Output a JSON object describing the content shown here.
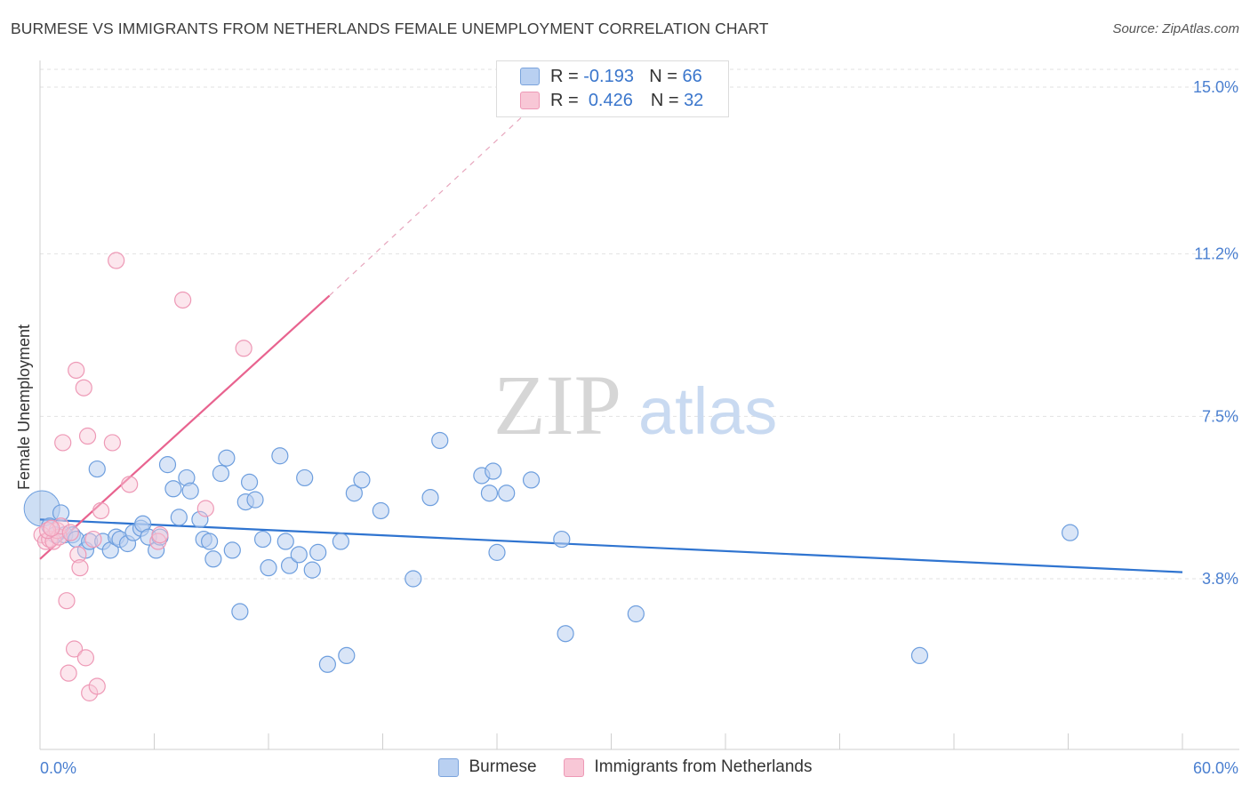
{
  "header": {
    "title": "BURMESE VS IMMIGRANTS FROM NETHERLANDS FEMALE UNEMPLOYMENT CORRELATION CHART",
    "source": "Source: ZipAtlas.com"
  },
  "watermark": {
    "zip": "ZIP",
    "atlas": "atlas"
  },
  "legend": {
    "r_label": "R =",
    "n_label": "N =",
    "burmese": {
      "r": "-0.193",
      "n": "66",
      "color": "#6fa0e0"
    },
    "netherlands": {
      "r": "0.426",
      "n": "32",
      "color": "#ef93b2"
    }
  },
  "bottom_legend": {
    "burmese": "Burmese",
    "netherlands": "Immigrants from Netherlands"
  },
  "chart_data": {
    "type": "scatter",
    "xlabel": "",
    "ylabel": "Female Unemployment",
    "x_tick_labels": [
      "0.0%",
      "60.0%"
    ],
    "y_tick_labels": [
      "3.8%",
      "7.5%",
      "11.2%",
      "15.0%"
    ],
    "y_ticks": [
      3.8,
      7.5,
      11.2,
      15.0
    ],
    "xlim": [
      0,
      60
    ],
    "ylim": [
      0,
      15.5
    ],
    "grid": true,
    "series": [
      {
        "name": "Burmese",
        "color": "#6fa0e0",
        "trend": {
          "x": [
            0,
            60
          ],
          "y": [
            5.15,
            3.95
          ]
        },
        "points": [
          [
            0.1,
            5.4
          ],
          [
            0.5,
            5.0
          ],
          [
            0.8,
            4.8
          ],
          [
            1.1,
            5.3
          ],
          [
            1.3,
            4.8
          ],
          [
            1.7,
            4.8
          ],
          [
            1.9,
            4.7
          ],
          [
            2.4,
            4.45
          ],
          [
            2.6,
            4.65
          ],
          [
            3.0,
            6.3
          ],
          [
            3.3,
            4.65
          ],
          [
            3.7,
            4.45
          ],
          [
            4.0,
            4.75
          ],
          [
            4.2,
            4.7
          ],
          [
            4.6,
            4.6
          ],
          [
            4.9,
            4.85
          ],
          [
            5.3,
            4.95
          ],
          [
            5.4,
            5.05
          ],
          [
            5.7,
            4.75
          ],
          [
            6.1,
            4.45
          ],
          [
            6.3,
            4.75
          ],
          [
            6.7,
            6.4
          ],
          [
            7.0,
            5.85
          ],
          [
            7.3,
            5.2
          ],
          [
            7.7,
            6.1
          ],
          [
            7.9,
            5.8
          ],
          [
            8.4,
            5.15
          ],
          [
            8.6,
            4.7
          ],
          [
            8.9,
            4.65
          ],
          [
            9.1,
            4.25
          ],
          [
            9.5,
            6.2
          ],
          [
            9.8,
            6.55
          ],
          [
            10.1,
            4.45
          ],
          [
            10.5,
            3.05
          ],
          [
            10.8,
            5.55
          ],
          [
            11.0,
            6.0
          ],
          [
            11.3,
            5.6
          ],
          [
            11.7,
            4.7
          ],
          [
            12.0,
            4.05
          ],
          [
            12.6,
            6.6
          ],
          [
            12.9,
            4.65
          ],
          [
            13.1,
            4.1
          ],
          [
            13.6,
            4.35
          ],
          [
            13.9,
            6.1
          ],
          [
            14.3,
            4.0
          ],
          [
            14.6,
            4.4
          ],
          [
            15.1,
            1.85
          ],
          [
            15.8,
            4.65
          ],
          [
            16.1,
            2.05
          ],
          [
            16.5,
            5.75
          ],
          [
            16.9,
            6.05
          ],
          [
            17.9,
            5.35
          ],
          [
            19.6,
            3.8
          ],
          [
            20.5,
            5.65
          ],
          [
            21.0,
            6.95
          ],
          [
            23.2,
            6.15
          ],
          [
            23.6,
            5.75
          ],
          [
            23.8,
            6.25
          ],
          [
            24.0,
            4.4
          ],
          [
            24.5,
            5.75
          ],
          [
            25.8,
            6.05
          ],
          [
            27.4,
            4.7
          ],
          [
            27.6,
            2.55
          ],
          [
            31.3,
            3.0
          ],
          [
            46.2,
            2.05
          ],
          [
            54.1,
            4.85
          ]
        ],
        "sizes": [
          28
        ]
      },
      {
        "name": "Immigrants from Netherlands",
        "color": "#ef93b2",
        "trend": {
          "x": [
            0,
            15.2
          ],
          "y": [
            4.25,
            10.25
          ],
          "dash_x": [
            15.2,
            26
          ],
          "dash_y": [
            10.25,
            14.6
          ]
        },
        "points": [
          [
            0.1,
            4.8
          ],
          [
            0.3,
            4.65
          ],
          [
            0.5,
            4.7
          ],
          [
            0.7,
            4.65
          ],
          [
            0.9,
            4.9
          ],
          [
            1.0,
            4.75
          ],
          [
            1.1,
            5.0
          ],
          [
            1.2,
            6.9
          ],
          [
            1.4,
            3.3
          ],
          [
            1.5,
            1.65
          ],
          [
            1.6,
            4.85
          ],
          [
            1.8,
            2.2
          ],
          [
            1.9,
            8.55
          ],
          [
            2.0,
            4.35
          ],
          [
            2.1,
            4.05
          ],
          [
            2.3,
            8.15
          ],
          [
            2.4,
            2.0
          ],
          [
            2.5,
            7.05
          ],
          [
            2.6,
            1.2
          ],
          [
            2.8,
            4.7
          ],
          [
            3.0,
            1.35
          ],
          [
            3.2,
            5.35
          ],
          [
            3.8,
            6.9
          ],
          [
            4.7,
            5.95
          ],
          [
            4.0,
            11.05
          ],
          [
            6.2,
            4.65
          ],
          [
            6.3,
            4.8
          ],
          [
            7.5,
            10.15
          ],
          [
            8.7,
            5.4
          ],
          [
            10.7,
            9.05
          ],
          [
            0.4,
            4.9
          ],
          [
            0.6,
            4.95
          ]
        ]
      }
    ]
  }
}
